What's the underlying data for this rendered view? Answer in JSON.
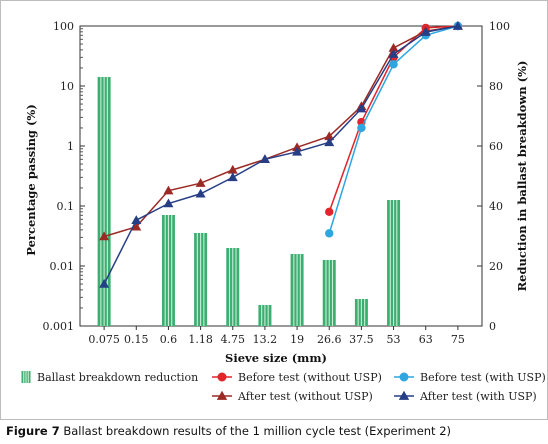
{
  "figure_caption": {
    "label": "Figure 7",
    "text": " Ballast breakdown results of the 1 million cycle test (Experiment 2)"
  },
  "chart_data": {
    "type": "bar",
    "title": "",
    "xlabel": "Sieve size (mm)",
    "ylabel": "Percentage passing (%)",
    "y2label": "Reduction in ballast breakdown (%)",
    "yscale": "log",
    "ylim": [
      0.001,
      100
    ],
    "y2lim": [
      0,
      100
    ],
    "categories": [
      "0.075",
      "0.15",
      "0.6",
      "1.18",
      "4.75",
      "13.2",
      "19",
      "26.6",
      "37.5",
      "53",
      "63",
      "75"
    ],
    "y_ticks": [
      "0.001",
      "0.01",
      "0.1",
      "1",
      "10",
      "100"
    ],
    "y2_ticks": [
      "0",
      "20",
      "40",
      "60",
      "80",
      "100"
    ],
    "grid": false,
    "legend_position": "bottom",
    "bars": {
      "name": "Ballast breakdown reduction",
      "axis": "right",
      "color": "#3dae6f",
      "values": [
        83,
        null,
        37,
        31,
        26,
        7,
        24,
        22,
        9,
        42,
        null,
        null
      ]
    },
    "series": [
      {
        "name": "Before test (without USP)",
        "axis": "left",
        "color": "#e0262b",
        "marker": "circle",
        "values": [
          null,
          null,
          null,
          null,
          null,
          null,
          null,
          0.08,
          2.5,
          30,
          93,
          100
        ]
      },
      {
        "name": "After test (without USP)",
        "axis": "left",
        "color": "#9b2a25",
        "marker": "triangle",
        "values": [
          0.031,
          0.045,
          0.18,
          0.24,
          0.4,
          0.6,
          0.95,
          1.45,
          4.6,
          43,
          82,
          100
        ]
      },
      {
        "name": "Before test (with USP)",
        "axis": "left",
        "color": "#2fa6e0",
        "marker": "circle",
        "values": [
          null,
          null,
          null,
          null,
          null,
          null,
          null,
          0.035,
          2.0,
          23,
          70,
          100
        ]
      },
      {
        "name": "After test (with USP)",
        "axis": "left",
        "color": "#263e85",
        "marker": "triangle",
        "values": [
          0.005,
          0.058,
          0.11,
          0.16,
          0.3,
          0.6,
          0.8,
          1.15,
          4.2,
          34,
          79,
          100
        ]
      }
    ]
  }
}
